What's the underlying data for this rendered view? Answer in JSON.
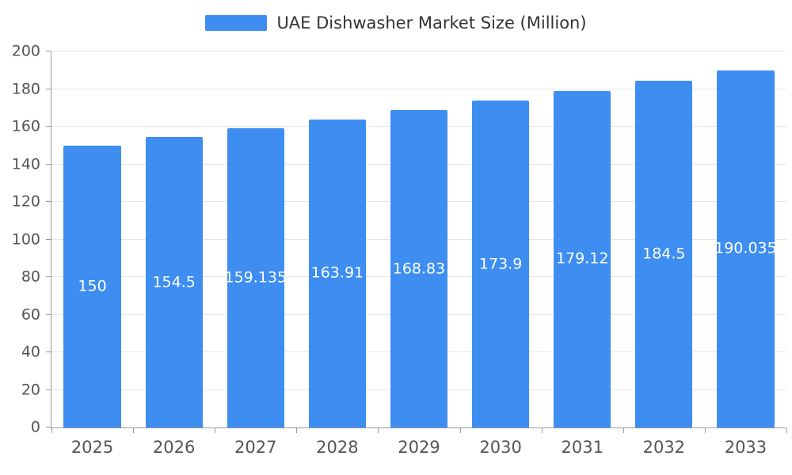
{
  "chart_data": {
    "type": "bar",
    "title": "UAE Dishwasher Market Size (Million)",
    "categories": [
      "2025",
      "2026",
      "2027",
      "2028",
      "2029",
      "2030",
      "2031",
      "2032",
      "2033"
    ],
    "values": [
      150,
      154.5,
      159.135,
      163.91,
      168.83,
      173.9,
      179.12,
      184.5,
      190.035
    ],
    "labels": [
      "150",
      "154.5",
      "159.135",
      "163.91",
      "168.83",
      "173.9",
      "179.12",
      "184.5",
      "190.035"
    ],
    "xlabel": "",
    "ylabel": "",
    "ylim": [
      0,
      200
    ],
    "yticks": [
      0,
      20,
      40,
      60,
      80,
      100,
      120,
      140,
      160,
      180,
      200
    ],
    "grid": true,
    "legend_position": "top-center",
    "bar_color": "#3d8ef0",
    "value_label_color": "#ffffff",
    "axis_color": "#999999",
    "grid_color": "#e6e6e6",
    "tick_label_color": "#555555"
  }
}
